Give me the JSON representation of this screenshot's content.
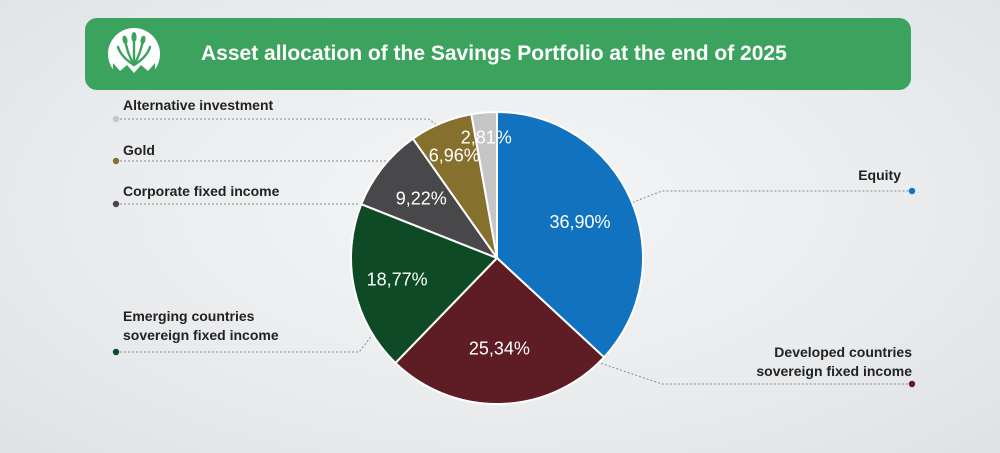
{
  "header": {
    "title": "Asset allocation of the Savings Portfolio at the end of 2025",
    "accent_color": "#3ca35e",
    "logo_icon": "wheat-emblem-logo"
  },
  "chart_data": {
    "type": "pie",
    "title": "Asset allocation of the Savings Portfolio at the end of 2025",
    "start_angle_deg": 0,
    "direction": "clockwise",
    "legend_placement": "left-and-right",
    "slices": [
      {
        "label": "Equity",
        "value": 36.9,
        "value_label": "36,90%",
        "color": "#1172bf",
        "side": "right"
      },
      {
        "label": "Developed countries sovereign fixed income",
        "label_lines": [
          "Developed countries",
          "sovereign fixed income"
        ],
        "value": 25.34,
        "value_label": "25,34%",
        "color": "#5e1c25",
        "side": "right"
      },
      {
        "label": "Emerging countries sovereign fixed income",
        "label_lines": [
          "Emerging countries",
          "sovereign fixed income"
        ],
        "value": 18.77,
        "value_label": "18,77%",
        "color": "#0f4a26",
        "side": "left"
      },
      {
        "label": "Corporate fixed income",
        "value": 9.22,
        "value_label": "9,22%",
        "color": "#48484a",
        "side": "left"
      },
      {
        "label": "Gold",
        "value": 6.96,
        "value_label": "6,96%",
        "color": "#86702e",
        "side": "left"
      },
      {
        "label": "Alternative investment",
        "value": 2.81,
        "value_label": "2,81%",
        "color": "#c6c6c6",
        "side": "left"
      }
    ]
  }
}
